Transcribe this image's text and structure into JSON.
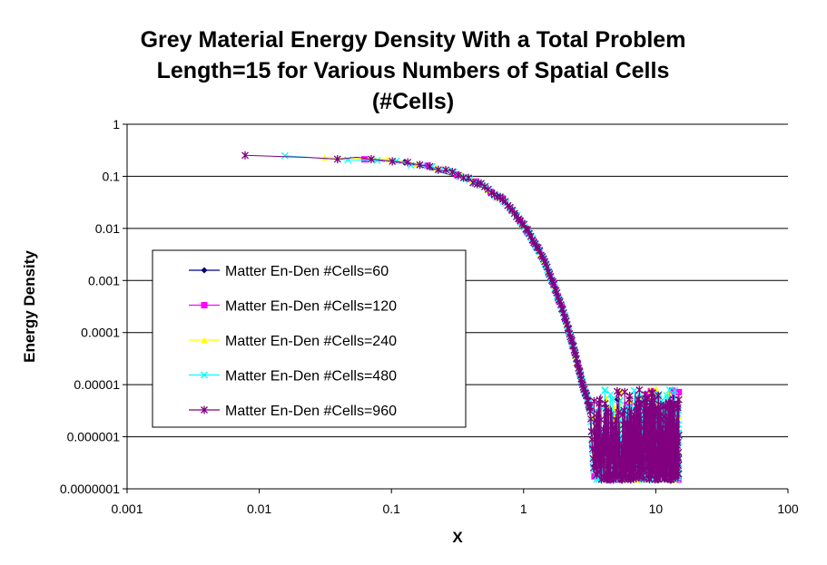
{
  "chart_data": {
    "type": "scatter",
    "title_lines": [
      "Grey Material Energy Density With a Total Problem",
      "Length=15 for Various Numbers of Spatial Cells",
      "(#Cells)"
    ],
    "xlabel": "X",
    "ylabel": "Energy Density",
    "x_scale": "log",
    "y_scale": "log",
    "xlim": [
      0.001,
      100
    ],
    "ylim": [
      1e-07,
      1
    ],
    "x_tick_labels": [
      "0.001",
      "0.01",
      "0.1",
      "1",
      "10",
      "100"
    ],
    "y_tick_labels": [
      "1",
      "0.1",
      "0.01",
      "0.001",
      "0.0001",
      "0.00001",
      "0.000001",
      "0.0000001"
    ],
    "grid": "horizontal major gridlines",
    "legend_position": "left-middle",
    "curve_profile": {
      "x": [
        0.0078,
        0.02,
        0.05,
        0.1,
        0.2,
        0.3,
        0.5,
        0.7,
        1.0,
        1.3,
        1.6,
        2.0,
        2.4,
        2.8,
        3.0,
        3.2,
        3.4
      ],
      "y": [
        0.24,
        0.235,
        0.22,
        0.2,
        0.15,
        0.115,
        0.065,
        0.035,
        0.012,
        0.004,
        0.0012,
        0.00025,
        5e-05,
        1e-05,
        6e-06,
        3e-06,
        2e-07
      ]
    },
    "noise_region": {
      "x_range": [
        3.4,
        15
      ],
      "y_range": [
        1.5e-07,
        1e-05
      ]
    },
    "series": [
      {
        "name": "Matter En-Den #Cells=60",
        "cells": 60,
        "color": "#000080",
        "marker": "diamond"
      },
      {
        "name": "Matter En-Den #Cells=120",
        "cells": 120,
        "color": "#ff00ff",
        "marker": "square"
      },
      {
        "name": "Matter En-Den #Cells=240",
        "cells": 240,
        "color": "#ffff00",
        "marker": "triangle"
      },
      {
        "name": "Matter En-Den #Cells=480",
        "cells": 480,
        "color": "#00ffff",
        "marker": "x"
      },
      {
        "name": "Matter En-Den #Cells=960",
        "cells": 960,
        "color": "#800080",
        "marker": "star"
      }
    ]
  }
}
